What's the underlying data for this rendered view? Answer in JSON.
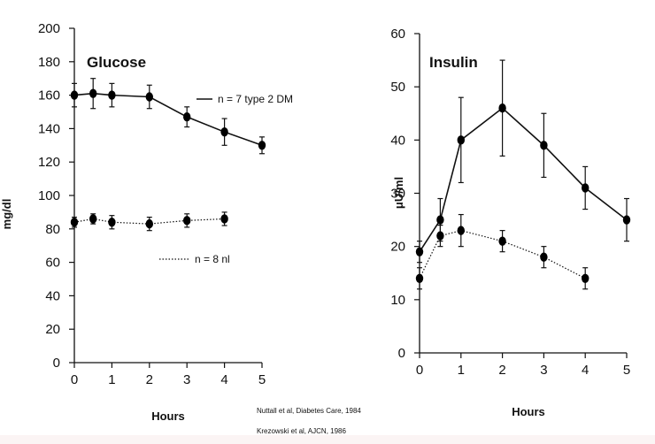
{
  "chart_data": [
    {
      "type": "line",
      "title": "Glucose",
      "xlabel": "Hours",
      "ylabel": "mg/dl",
      "xlim": [
        0,
        5
      ],
      "ylim": [
        0,
        200
      ],
      "xticks": [
        0,
        1,
        2,
        3,
        4,
        5
      ],
      "yticks": [
        0,
        20,
        40,
        60,
        80,
        100,
        120,
        140,
        160,
        180,
        200
      ],
      "series": [
        {
          "name": "n = 7  type 2 DM",
          "style": "solid",
          "x": [
            0,
            0.5,
            1,
            2,
            3,
            4,
            5
          ],
          "y": [
            160,
            161,
            160,
            159,
            147,
            138,
            130
          ],
          "err": [
            7,
            9,
            7,
            7,
            6,
            8,
            5
          ]
        },
        {
          "name": "n = 8 nl",
          "style": "dotted",
          "x": [
            0,
            0.5,
            1,
            2,
            3,
            4
          ],
          "y": [
            84,
            86,
            84,
            83,
            85,
            86
          ],
          "err": [
            3,
            3,
            4,
            4,
            4,
            4
          ]
        }
      ]
    },
    {
      "type": "line",
      "title": "Insulin",
      "xlabel": "Hours",
      "ylabel": "μU/ml",
      "xlim": [
        0,
        5
      ],
      "ylim": [
        0,
        60
      ],
      "xticks": [
        0,
        1,
        2,
        3,
        4,
        5
      ],
      "yticks": [
        0,
        10,
        20,
        30,
        40,
        50,
        60
      ],
      "series": [
        {
          "name": "type 2 DM",
          "style": "solid",
          "x": [
            0,
            0.5,
            1,
            2,
            3,
            4,
            5
          ],
          "y": [
            19,
            25,
            40,
            46,
            39,
            31,
            25
          ],
          "err": [
            2,
            4,
            8,
            9,
            6,
            4,
            4
          ]
        },
        {
          "name": "nl",
          "style": "dotted",
          "x": [
            0,
            0.5,
            1,
            2,
            3,
            4
          ],
          "y": [
            14,
            22,
            23,
            21,
            18,
            14
          ],
          "err": [
            2,
            2,
            3,
            2,
            2,
            2
          ]
        }
      ]
    }
  ],
  "citations": [
    "Nuttall et al, Diabetes Care, 1984",
    "Krezowski et al, AJCN, 1986"
  ]
}
